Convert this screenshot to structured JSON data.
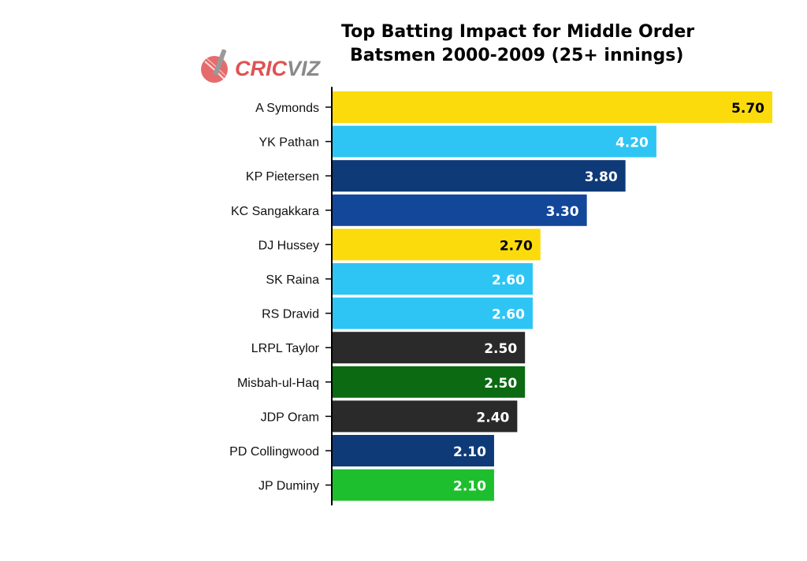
{
  "chart_data": {
    "type": "bar",
    "orientation": "horizontal",
    "title_lines": [
      "Top Batting Impact for Middle Order",
      "Batsmen 2000-2009 (25+ innings)"
    ],
    "categories": [
      "A Symonds",
      "YK Pathan",
      "KP Pietersen",
      "KC Sangakkara",
      "DJ Hussey",
      "SK Raina",
      "RS Dravid",
      "LRPL Taylor",
      "Misbah-ul-Haq",
      "JDP Oram",
      "PD Collingwood",
      "JP Duminy"
    ],
    "values": [
      5.7,
      4.2,
      3.8,
      3.3,
      2.7,
      2.6,
      2.6,
      2.5,
      2.5,
      2.4,
      2.1,
      2.1
    ],
    "value_labels": [
      "5.70",
      "4.20",
      "3.80",
      "3.30",
      "2.70",
      "2.60",
      "2.60",
      "2.50",
      "2.50",
      "2.40",
      "2.10",
      "2.10"
    ],
    "bar_colors": [
      "#fbdb0c",
      "#2ec5f4",
      "#0f3a78",
      "#12479a",
      "#fbdb0c",
      "#2ec5f4",
      "#2ec5f4",
      "#2a2a2a",
      "#0b6a12",
      "#2a2a2a",
      "#0f3a78",
      "#1ebf2e"
    ],
    "label_colors": [
      "#000000",
      "#ffffff",
      "#ffffff",
      "#ffffff",
      "#000000",
      "#ffffff",
      "#ffffff",
      "#ffffff",
      "#ffffff",
      "#ffffff",
      "#ffffff",
      "#ffffff"
    ],
    "xlim": [
      0,
      5.7
    ],
    "grid": false,
    "legend": "none"
  },
  "logo": {
    "text_red": "CRIC",
    "text_grey": "VIZ"
  }
}
